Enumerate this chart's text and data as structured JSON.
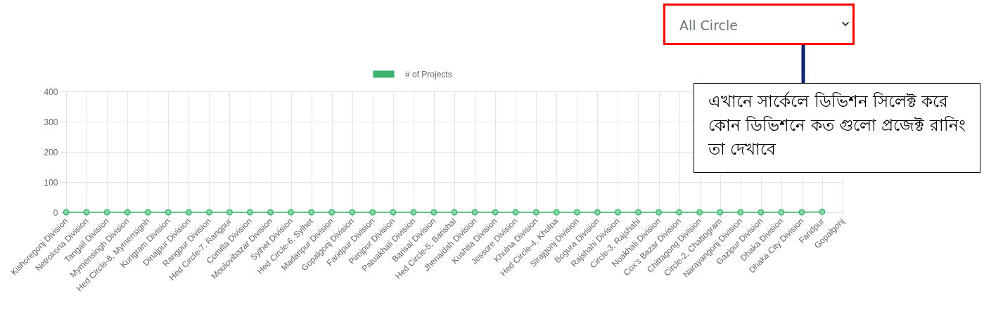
{
  "chart_data": {
    "type": "line",
    "categories": [
      "Kishoregonj Division",
      "Netrokona Division",
      "Tangail Division",
      "Mymensingh Division",
      "Hed Circle-8, Mymensignh",
      "Kurigram Division",
      "Dinajpur Division",
      "Rangpur Division",
      "Hed Circle-7, Rangpur",
      "Comilla Division",
      "Moulovibazar Division",
      "Sylhet Division",
      "Hed Circle-6, Sylhet",
      "Madaripur Division",
      "Gopalgonj Division",
      "Faridpur Division",
      "Pirojpur Division",
      "Patuakhali Division",
      "Barisal Division",
      "Hed Circle-5, Barishal",
      "Jhenaidah Division",
      "Kushtia Division",
      "Jessore Division",
      "Khulna Division",
      "Hed Circle-4, Khulna",
      "Sirajgonj Division",
      "Bogura Division",
      "Rajshahi Division",
      "Circle-3, Rajshahi",
      "Noakhali Division",
      "Cox's Bazar Division",
      "Chittagong Division",
      "Circle-2, Chattogram",
      "Narayangonj Division",
      "Gazipur Division",
      "Dhaka Division",
      "Dhaka City Division",
      "Faridpur",
      "Gopalgonj"
    ],
    "series": [
      {
        "name": "# of Projects",
        "color": "#3cb46e",
        "values": [
          0,
          0,
          0,
          0,
          0,
          0,
          0,
          0,
          0,
          0,
          0,
          0,
          0,
          0,
          0,
          0,
          0,
          0,
          0,
          0,
          0,
          0,
          0,
          0,
          0,
          0,
          0,
          0,
          0,
          0,
          0,
          0,
          0,
          0,
          0,
          0,
          0,
          2,
          null
        ]
      }
    ],
    "ylim": [
      0,
      400
    ],
    "yticks": [
      0,
      100,
      200,
      300,
      400
    ],
    "grid": true,
    "legend": "top",
    "marker": "circle",
    "line_style": "solid",
    "annotations": [
      "All Circle",
      "এখানে সার্কেলে ডিভিশন সিলেক্ট করে কোন ডিভিশনে কত গুলো প্রজেক্ট রানিং তা দেখাবে"
    ]
  }
}
